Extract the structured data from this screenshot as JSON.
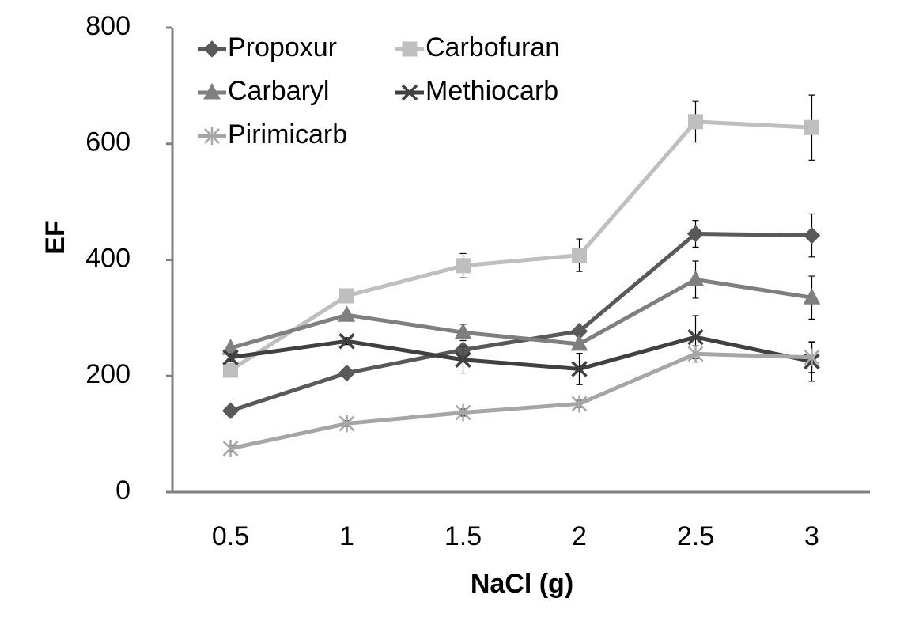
{
  "chart_data": {
    "type": "line",
    "x_label": "NaCl (g)",
    "y_label": "EF",
    "categories": [
      "0.5",
      "1",
      "1.5",
      "2",
      "2.5",
      "3"
    ],
    "ylim": [
      0,
      800
    ],
    "yticks": [
      0,
      200,
      400,
      600,
      800
    ],
    "grid": false,
    "legend": "top-left",
    "series": [
      {
        "name": "Propoxur",
        "color": "#595959",
        "marker": "diamond",
        "values": [
          140,
          205,
          245,
          277,
          445,
          442
        ],
        "errors": [
          5,
          6,
          8,
          6,
          23,
          37
        ]
      },
      {
        "name": "Carbofuran",
        "color": "#bfbfbf",
        "marker": "square",
        "values": [
          210,
          338,
          390,
          408,
          638,
          628
        ],
        "errors": [
          6,
          6,
          21,
          28,
          35,
          56
        ]
      },
      {
        "name": "Carbaryl",
        "color": "#7f7f7f",
        "marker": "triangle",
        "values": [
          248,
          305,
          275,
          255,
          366,
          335
        ],
        "errors": [
          5,
          6,
          14,
          8,
          32,
          37
        ]
      },
      {
        "name": "Methiocarb",
        "color": "#404040",
        "marker": "x",
        "values": [
          232,
          260,
          228,
          212,
          267,
          225
        ],
        "errors": [
          6,
          6,
          23,
          27,
          37,
          34
        ]
      },
      {
        "name": "Pirimicarb",
        "color": "#a6a6a6",
        "marker": "star",
        "values": [
          75,
          118,
          137,
          152,
          238,
          232
        ],
        "errors": [
          5,
          5,
          6,
          6,
          14,
          26
        ]
      }
    ]
  }
}
